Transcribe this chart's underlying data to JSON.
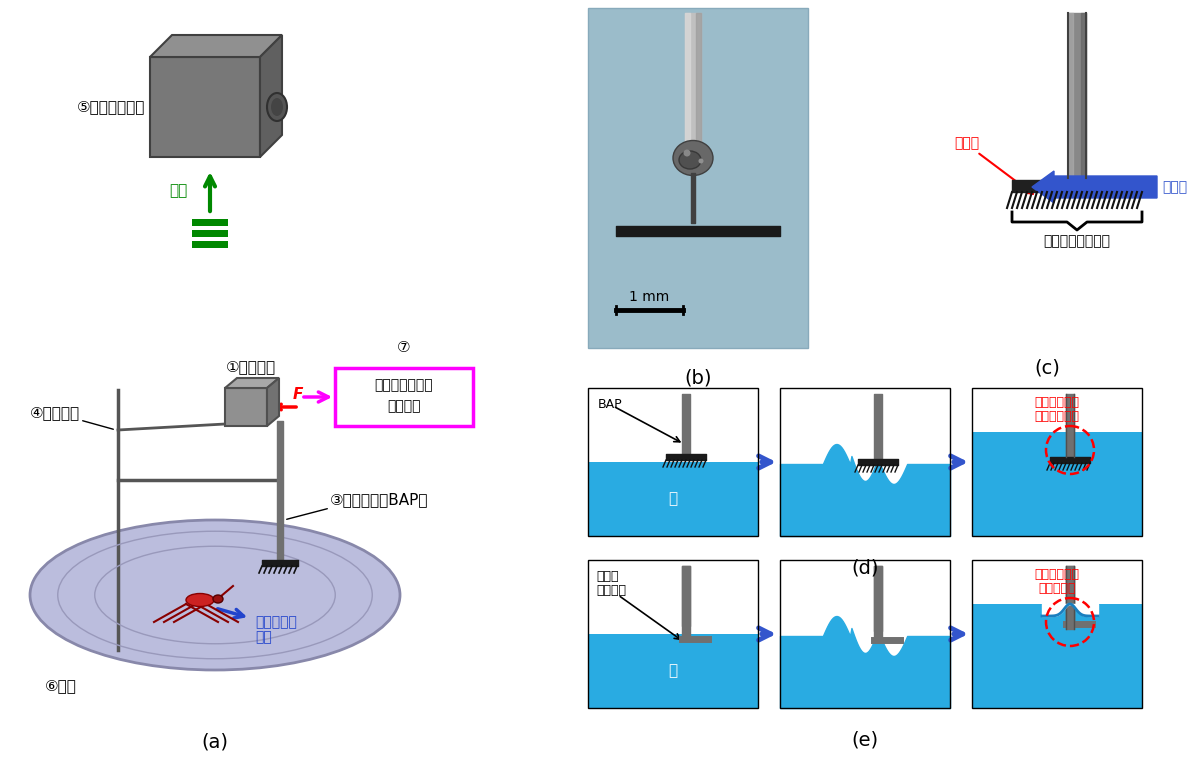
{
  "figure_width": 12.0,
  "figure_height": 7.76,
  "bg_color": "#ffffff",
  "panel_labels": {
    "a": "(a)",
    "b": "(b)",
    "c": "(c)",
    "d": "(d)",
    "e": "(e)"
  },
  "colors": {
    "water_blue": "#29ABE2",
    "probe_gray": "#808080",
    "probe_dark": "#505050",
    "bap_black": "#1a1a1a",
    "arrow_blue_fill": "#3355CC",
    "green_arrow": "#008800",
    "magenta_box": "#FF00FF",
    "camera_gray_front": "#808080",
    "camera_gray_top": "#909090",
    "camera_gray_right": "#606060",
    "photo_bg": "#9BBCCA",
    "label_color": "#000000"
  },
  "texts": {
    "camera_label": "⑤高速度カメラ",
    "record_label": "録画",
    "fixture_label": "④固定治具",
    "sensor_label": "①カセンサ",
    "data_label": "測定データ収録",
    "data_label2": "システム",
    "probe_label": "③プローブ（BAP）",
    "stroke_label": "中脇の漕ぐ",
    "stroke_label2": "動作",
    "tank_label": "⑥水槽",
    "bap_label": "BAP",
    "fine_hair_label": "微細毛",
    "low_friction_label": "低摩擦",
    "amenbo_part_label": "アメンボ脇流用部",
    "scale_label": "1 mm",
    "d_panel_note_l1": "メニスカスが",
    "d_panel_note_l2": "形成されない",
    "e_panel_note_l1": "メニスカスが",
    "e_panel_note_l2": "形成される",
    "water_text": "水",
    "num6": "⑦",
    "usual_probe_l1": "通常の",
    "usual_probe_l2": "プローブ",
    "F_label": "F"
  }
}
